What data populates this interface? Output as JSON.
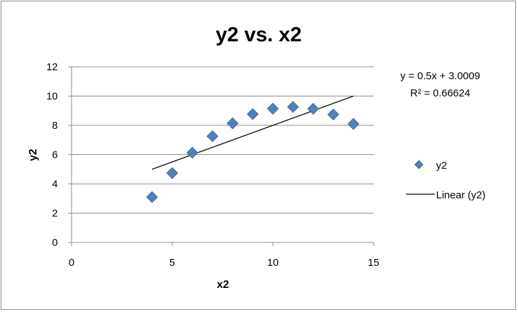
{
  "chart_data": {
    "type": "scatter",
    "title": "y2 vs. x2",
    "xlabel": "x2",
    "ylabel": "y2",
    "xlim": [
      0,
      15
    ],
    "ylim": [
      0,
      12
    ],
    "xticks": [
      0,
      5,
      10,
      15
    ],
    "yticks": [
      0,
      2,
      4,
      6,
      8,
      10,
      12
    ],
    "grid": "horizontal",
    "legend_position": "right",
    "series": [
      {
        "name": "y2",
        "marker": "diamond",
        "color": "#4f81bd",
        "x": [
          4,
          5,
          6,
          7,
          8,
          9,
          10,
          11,
          12,
          13,
          14
        ],
        "y": [
          3.1,
          4.74,
          6.13,
          7.26,
          8.14,
          8.77,
          9.14,
          9.26,
          9.13,
          8.74,
          8.1
        ]
      }
    ],
    "trendline": {
      "name": "Linear (y2)",
      "type": "linear",
      "slope": 0.5,
      "intercept": 3.0009,
      "x_range": [
        4,
        14
      ],
      "equation": "y = 0.5x + 3.0009",
      "r_squared": "R² = 0.66624",
      "color": "#000000"
    }
  }
}
